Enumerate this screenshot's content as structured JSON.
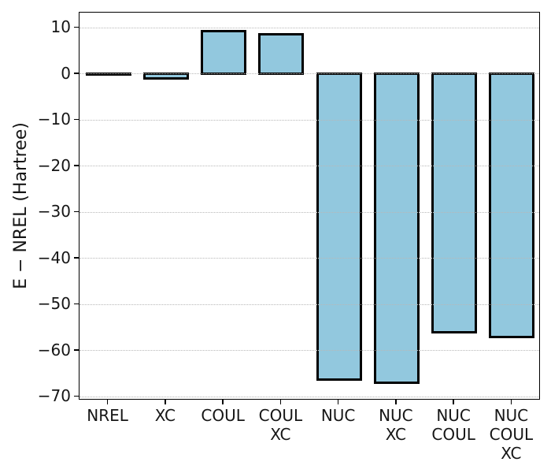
{
  "figure": {
    "background": "#ffffff"
  },
  "chart_data": {
    "type": "bar",
    "title": "",
    "xlabel": "",
    "ylabel": "E − NREL (Hartree)",
    "categories": [
      "NREL",
      "XC",
      "COUL",
      "COUL\nXC",
      "NUC",
      "NUC\nXC",
      "NUC\nCOUL",
      "NUC\nCOUL\nXC"
    ],
    "values": [
      0.0,
      -1.0,
      9.3,
      8.6,
      -66.2,
      -67.0,
      -56.1,
      -57.1
    ],
    "yticks": [
      10,
      0,
      -10,
      -20,
      -30,
      -40,
      -50,
      -60,
      -70
    ],
    "ytick_labels": [
      "10",
      "0",
      "−10",
      "−20",
      "−30",
      "−40",
      "−50",
      "−60",
      "−70"
    ],
    "ylim": [
      -70.8,
      13.3
    ],
    "grid": "horizontal",
    "grid_linestyle": "dotted",
    "legend_position": "none",
    "bar_color": "#92c8de",
    "bar_edge_color": "#000000",
    "grid_color": "#b8b8b8"
  }
}
